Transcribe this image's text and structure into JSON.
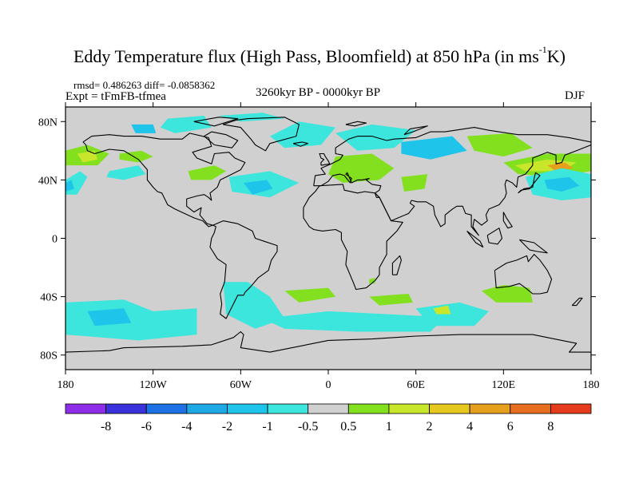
{
  "title_main": "Eddy Temperature flux (High Pass, Bloomfield) at 850 hPa (in ms",
  "title_sup": "-1",
  "title_tail": "K)",
  "stats": "rmsd= 0.486263 diff= -0.0858362",
  "expt": "Expt = tFmFB-tfmea",
  "period": "3260kyr BP - 0000kyr BP",
  "season": "DJF",
  "lat_ticks": [
    {
      "label": "80N",
      "lat": 80
    },
    {
      "label": "40N",
      "lat": 40
    },
    {
      "label": "0",
      "lat": 0
    },
    {
      "label": "40S",
      "lat": -40
    },
    {
      "label": "80S",
      "lat": -80
    }
  ],
  "lon_ticks": [
    {
      "label": "180",
      "lon": -180
    },
    {
      "label": "120W",
      "lon": -120
    },
    {
      "label": "60W",
      "lon": -60
    },
    {
      "label": "0",
      "lon": 0
    },
    {
      "label": "60E",
      "lon": 60
    },
    {
      "label": "120E",
      "lon": 120
    },
    {
      "label": "180",
      "lon": 180
    }
  ],
  "colorbar": {
    "colors": [
      "#8f2ee8",
      "#3a32db",
      "#1f72e6",
      "#1fa8e6",
      "#1fc4ea",
      "#3ce6dc",
      "#d0d0d0",
      "#82e01e",
      "#c8e62a",
      "#e6c81e",
      "#e6a01e",
      "#e66e1e",
      "#e63c1e"
    ],
    "labels": [
      "-8",
      "-6",
      "-4",
      "-2",
      "-1",
      "-0.5",
      "0.5",
      "1",
      "2",
      "4",
      "6",
      "8"
    ]
  },
  "chart_data": {
    "type": "heatmap",
    "title": "Eddy Temperature flux (High Pass, Bloomfield) at 850 hPa (in ms-1K)",
    "lon_range": [
      -180,
      180
    ],
    "lat_range": [
      -90,
      90
    ],
    "levels": [
      -8,
      -6,
      -4,
      -2,
      -1,
      -0.5,
      0.5,
      1,
      2,
      4,
      6,
      8
    ],
    "background": "#d0d0d0",
    "regions": [
      {
        "name": "north-pacific-east-negative",
        "color": "#3ce6dc",
        "points": [
          [
            -180,
            40
          ],
          [
            -170,
            46
          ],
          [
            -165,
            42
          ],
          [
            -172,
            30
          ],
          [
            -180,
            30
          ]
        ]
      },
      {
        "name": "north-pacific-east-strong",
        "color": "#1fc4ea",
        "points": [
          [
            -180,
            38
          ],
          [
            -176,
            40
          ],
          [
            -174,
            34
          ],
          [
            -180,
            32
          ]
        ]
      },
      {
        "name": "north-pacific-positive",
        "color": "#82e01e",
        "points": [
          [
            -180,
            60
          ],
          [
            -165,
            64
          ],
          [
            -150,
            58
          ],
          [
            -158,
            50
          ],
          [
            -180,
            50
          ]
        ]
      },
      {
        "name": "north-pacific-positive-core",
        "color": "#c8e62a",
        "points": [
          [
            -172,
            58
          ],
          [
            -160,
            60
          ],
          [
            -158,
            54
          ],
          [
            -168,
            52
          ]
        ]
      },
      {
        "name": "alaska-positive",
        "color": "#82e01e",
        "points": [
          [
            -143,
            58
          ],
          [
            -128,
            60
          ],
          [
            -120,
            56
          ],
          [
            -130,
            52
          ],
          [
            -143,
            54
          ]
        ]
      },
      {
        "name": "gulf-alaska-negative",
        "color": "#3ce6dc",
        "points": [
          [
            -150,
            46
          ],
          [
            -130,
            50
          ],
          [
            -125,
            44
          ],
          [
            -140,
            40
          ],
          [
            -152,
            42
          ]
        ]
      },
      {
        "name": "canada-negative",
        "color": "#3ce6dc",
        "points": [
          [
            -110,
            82
          ],
          [
            -85,
            84
          ],
          [
            -80,
            76
          ],
          [
            -105,
            72
          ],
          [
            -115,
            76
          ]
        ]
      },
      {
        "name": "canada-blue",
        "color": "#1fc4ea",
        "points": [
          [
            -135,
            78
          ],
          [
            -120,
            78
          ],
          [
            -118,
            72
          ],
          [
            -132,
            72
          ]
        ]
      },
      {
        "name": "east-us-positive",
        "color": "#82e01e",
        "points": [
          [
            -96,
            46
          ],
          [
            -78,
            50
          ],
          [
            -70,
            46
          ],
          [
            -80,
            40
          ],
          [
            -94,
            40
          ]
        ]
      },
      {
        "name": "atlantic-negative",
        "color": "#3ce6dc",
        "points": [
          [
            -68,
            42
          ],
          [
            -40,
            46
          ],
          [
            -20,
            38
          ],
          [
            -40,
            28
          ],
          [
            -66,
            32
          ]
        ]
      },
      {
        "name": "atlantic-core",
        "color": "#1fc4ea",
        "points": [
          [
            -58,
            38
          ],
          [
            -42,
            40
          ],
          [
            -38,
            34
          ],
          [
            -52,
            30
          ]
        ]
      },
      {
        "name": "north-atlantic-band",
        "color": "#3ce6dc",
        "points": [
          [
            -40,
            70
          ],
          [
            -20,
            80
          ],
          [
            5,
            76
          ],
          [
            -5,
            64
          ],
          [
            -30,
            62
          ]
        ]
      },
      {
        "name": "greenland-north",
        "color": "#3ce6dc",
        "points": [
          [
            -75,
            84
          ],
          [
            -45,
            86
          ],
          [
            -30,
            82
          ],
          [
            -60,
            80
          ]
        ]
      },
      {
        "name": "scandinavia-negative",
        "color": "#3ce6dc",
        "points": [
          [
            5,
            72
          ],
          [
            30,
            78
          ],
          [
            60,
            74
          ],
          [
            45,
            62
          ],
          [
            20,
            60
          ]
        ]
      },
      {
        "name": "siberia-negative",
        "color": "#1fc4ea",
        "points": [
          [
            50,
            66
          ],
          [
            85,
            70
          ],
          [
            95,
            60
          ],
          [
            70,
            54
          ],
          [
            50,
            58
          ]
        ]
      },
      {
        "name": "europe-positive",
        "color": "#82e01e",
        "points": [
          [
            5,
            56
          ],
          [
            30,
            58
          ],
          [
            45,
            48
          ],
          [
            35,
            40
          ],
          [
            10,
            38
          ],
          [
            0,
            44
          ]
        ]
      },
      {
        "name": "caspian-positive",
        "color": "#82e01e",
        "points": [
          [
            50,
            42
          ],
          [
            68,
            44
          ],
          [
            66,
            34
          ],
          [
            52,
            32
          ]
        ]
      },
      {
        "name": "asia-positive",
        "color": "#82e01e",
        "points": [
          [
            95,
            70
          ],
          [
            125,
            72
          ],
          [
            140,
            62
          ],
          [
            120,
            56
          ],
          [
            100,
            60
          ]
        ]
      },
      {
        "name": "east-asia-positive",
        "color": "#82e01e",
        "points": [
          [
            120,
            52
          ],
          [
            150,
            58
          ],
          [
            180,
            58
          ],
          [
            180,
            46
          ],
          [
            155,
            42
          ],
          [
            130,
            44
          ]
        ]
      },
      {
        "name": "east-asia-yellow",
        "color": "#c8e62a",
        "points": [
          [
            128,
            50
          ],
          [
            150,
            54
          ],
          [
            170,
            52
          ],
          [
            160,
            46
          ],
          [
            135,
            46
          ]
        ]
      },
      {
        "name": "kamchatka-orange",
        "color": "#e6a01e",
        "points": [
          [
            150,
            50
          ],
          [
            162,
            52
          ],
          [
            168,
            48
          ],
          [
            156,
            46
          ]
        ]
      },
      {
        "name": "north-pacific-west-negative",
        "color": "#3ce6dc",
        "points": [
          [
            135,
            42
          ],
          [
            160,
            48
          ],
          [
            180,
            44
          ],
          [
            180,
            28
          ],
          [
            160,
            26
          ],
          [
            140,
            30
          ]
        ]
      },
      {
        "name": "north-pacific-west-core",
        "color": "#1fc4ea",
        "points": [
          [
            148,
            40
          ],
          [
            165,
            42
          ],
          [
            172,
            36
          ],
          [
            160,
            32
          ],
          [
            150,
            34
          ]
        ]
      },
      {
        "name": "south-pacific-negative",
        "color": "#3ce6dc",
        "points": [
          [
            -180,
            -44
          ],
          [
            -140,
            -42
          ],
          [
            -120,
            -50
          ],
          [
            -90,
            -48
          ],
          [
            -90,
            -66
          ],
          [
            -130,
            -70
          ],
          [
            -180,
            -66
          ]
        ]
      },
      {
        "name": "south-pacific-core",
        "color": "#1fc4ea",
        "points": [
          [
            -165,
            -50
          ],
          [
            -140,
            -48
          ],
          [
            -135,
            -58
          ],
          [
            -160,
            -60
          ]
        ]
      },
      {
        "name": "south-america-negative",
        "color": "#3ce6dc",
        "points": [
          [
            -72,
            -30
          ],
          [
            -55,
            -30
          ],
          [
            -40,
            -40
          ],
          [
            -30,
            -55
          ],
          [
            -50,
            -62
          ],
          [
            -70,
            -52
          ]
        ]
      },
      {
        "name": "south-atlantic-negative",
        "color": "#3ce6dc",
        "points": [
          [
            -45,
            -55
          ],
          [
            0,
            -50
          ],
          [
            40,
            -52
          ],
          [
            80,
            -54
          ],
          [
            70,
            -64
          ],
          [
            20,
            -64
          ],
          [
            -30,
            -62
          ]
        ]
      },
      {
        "name": "south-atlantic-positive",
        "color": "#82e01e",
        "points": [
          [
            -30,
            -36
          ],
          [
            0,
            -34
          ],
          [
            5,
            -40
          ],
          [
            -20,
            -44
          ]
        ]
      },
      {
        "name": "indian-ocean-positive",
        "color": "#82e01e",
        "points": [
          [
            28,
            -40
          ],
          [
            55,
            -38
          ],
          [
            58,
            -44
          ],
          [
            35,
            -46
          ]
        ]
      },
      {
        "name": "africa-patch",
        "color": "#82e01e",
        "points": [
          [
            28,
            -28
          ],
          [
            32,
            -27
          ],
          [
            32,
            -31
          ],
          [
            28,
            -31
          ]
        ]
      },
      {
        "name": "indian-ocean-negative",
        "color": "#3ce6dc",
        "points": [
          [
            60,
            -48
          ],
          [
            90,
            -44
          ],
          [
            110,
            -50
          ],
          [
            100,
            -60
          ],
          [
            70,
            -60
          ]
        ]
      },
      {
        "name": "indian-ocean-yellow",
        "color": "#c8e62a",
        "points": [
          [
            72,
            -48
          ],
          [
            82,
            -46
          ],
          [
            84,
            -52
          ],
          [
            74,
            -52
          ]
        ]
      },
      {
        "name": "australia-positive",
        "color": "#82e01e",
        "points": [
          [
            105,
            -36
          ],
          [
            120,
            -32
          ],
          [
            138,
            -34
          ],
          [
            140,
            -44
          ],
          [
            115,
            -44
          ]
        ]
      }
    ]
  }
}
